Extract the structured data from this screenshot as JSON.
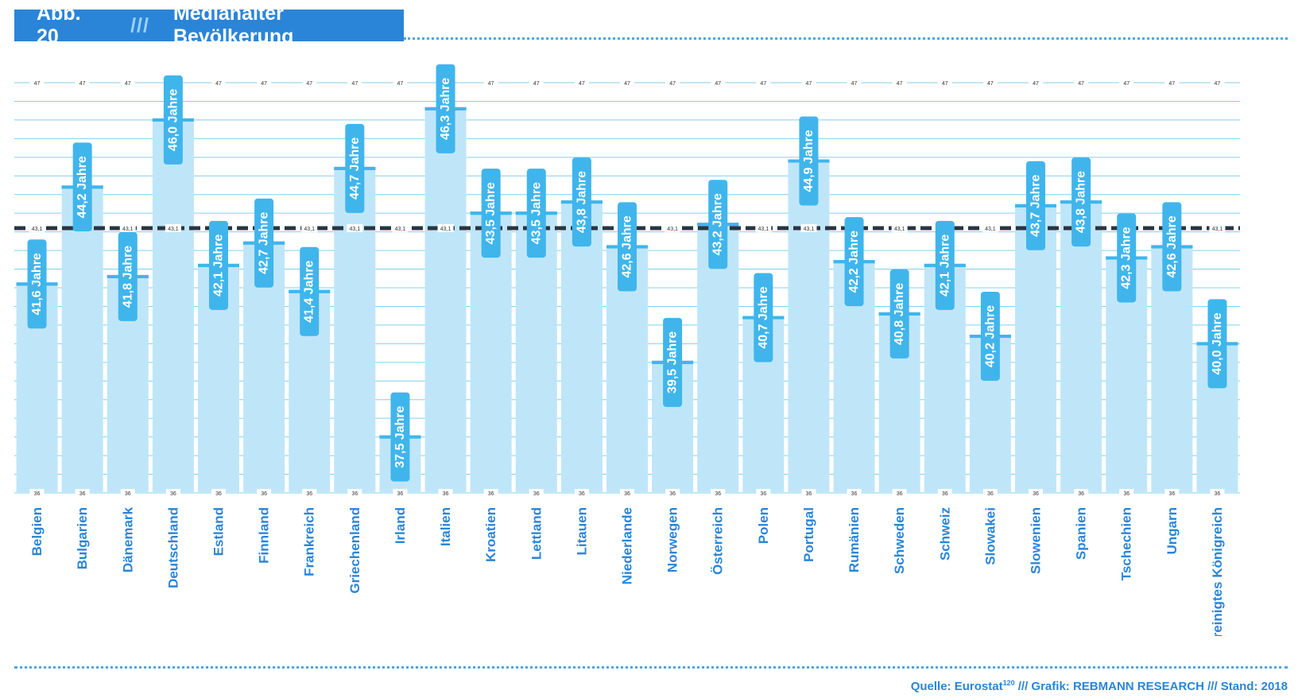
{
  "header": {
    "fig_label": "Abb. 20",
    "separator": "///",
    "title": "Medianalter Bevölkerung"
  },
  "footer": {
    "source_prefix": "Quelle: Eurostat",
    "source_sup": "120",
    "source_suffix": " /// Grafik: REBMANN RESEARCH /// Stand: 2018"
  },
  "colors": {
    "bar": "#bfe6f8",
    "bar_header": "#2a85d8",
    "label_box": "#40b5ec",
    "label_text": "#ffffff",
    "grid": "#7fd0f0",
    "reference_line": "#2b3440",
    "category_text": "#2a85d8"
  },
  "chart_data": {
    "type": "bar",
    "ylim": [
      36,
      47
    ],
    "ytick_top_label": "47",
    "ytick_bottom_label": "36",
    "reference": {
      "value": 43.1,
      "label": "43,1"
    },
    "categories": [
      "Belgien",
      "Bulgarien",
      "Dänemark",
      "Deutschland",
      "Estland",
      "Finnland",
      "Frankreich",
      "Griechenland",
      "Irland",
      "Italien",
      "Kroatien",
      "Lettland",
      "Litauen",
      "Niederlande",
      "Norwegen",
      "Österreich",
      "Polen",
      "Portugal",
      "Rumänien",
      "Schweden",
      "Schweiz",
      "Slowakei",
      "Slowenien",
      "Spanien",
      "Tschechien",
      "Ungarn",
      "Vereinigtes Königreich"
    ],
    "values": [
      41.6,
      44.2,
      41.8,
      46.0,
      42.1,
      42.7,
      41.4,
      44.7,
      37.5,
      46.3,
      43.5,
      43.5,
      43.8,
      42.6,
      39.5,
      43.2,
      40.7,
      44.9,
      42.2,
      40.8,
      42.1,
      40.2,
      43.7,
      43.8,
      42.3,
      42.6,
      40.0
    ],
    "value_labels": [
      "41,6 Jahre",
      "44,2 Jahre",
      "41,8 Jahre",
      "46,0 Jahre",
      "42,1 Jahre",
      "42,7 Jahre",
      "41,4 Jahre",
      "44,7 Jahre",
      "37,5 Jahre",
      "46,3 Jahre",
      "43,5 Jahre",
      "43,5 Jahre",
      "43,8 Jahre",
      "42,6 Jahre",
      "39,5 Jahre",
      "43,2 Jahre",
      "40,7 Jahre",
      "44,9 Jahre",
      "42,2 Jahre",
      "40,8 Jahre",
      "42,1 Jahre",
      "40,2 Jahre",
      "43,7 Jahre",
      "43,8 Jahre",
      "42,3 Jahre",
      "42,6 Jahre",
      "40,0 Jahre"
    ]
  }
}
